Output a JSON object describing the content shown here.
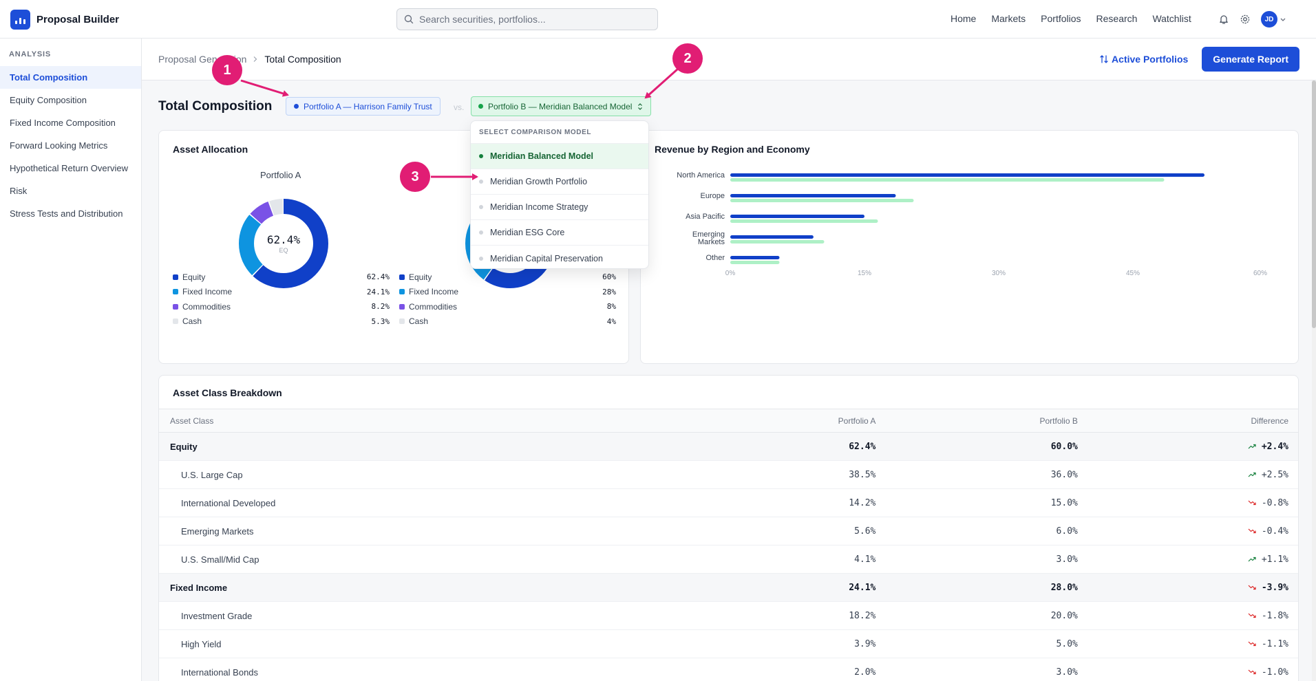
{
  "app": {
    "name": "Proposal Builder"
  },
  "search": {
    "placeholder": "Search securities, portfolios..."
  },
  "topnav": [
    "Home",
    "Markets",
    "Portfolios",
    "Research",
    "Watchlist"
  ],
  "user": {
    "initials": "JD"
  },
  "sidebar": {
    "section": "ANALYSIS",
    "items": [
      {
        "label": "Total Composition",
        "active": true
      },
      {
        "label": "Equity Composition"
      },
      {
        "label": "Fixed Income Composition"
      },
      {
        "label": "Forward Looking Metrics"
      },
      {
        "label": "Hypothetical Return Overview"
      },
      {
        "label": "Risk"
      },
      {
        "label": "Stress Tests and Distribution"
      }
    ]
  },
  "breadcrumb": {
    "parent": "Proposal Generation",
    "current": "Total Composition"
  },
  "actions": {
    "active_portfolios": "Active Portfolios",
    "generate": "Generate Report"
  },
  "page": {
    "title": "Total Composition",
    "portfolio_a": "Portfolio A — Harrison Family Trust",
    "vs": "vs.",
    "portfolio_b": "Portfolio B — Meridian Balanced Model"
  },
  "dropdown": {
    "header": "SELECT COMPARISON MODEL",
    "items": [
      {
        "label": "Meridian Balanced Model",
        "selected": true
      },
      {
        "label": "Meridian Growth Portfolio"
      },
      {
        "label": "Meridian Income Strategy"
      },
      {
        "label": "Meridian ESG Core"
      },
      {
        "label": "Meridian Capital Preservation"
      }
    ]
  },
  "allocation": {
    "title": "Asset Allocation",
    "portfolio_a_label": "Portfolio A",
    "center_value": "62.4%",
    "center_sub": "EQ",
    "colors": {
      "equity": "#1040c8",
      "fixed_income": "#0e94e0",
      "commodities": "#7a52e6",
      "cash": "#e3e6ea"
    },
    "a": [
      {
        "name": "Equity",
        "value": "62.4%",
        "pct": 62.4,
        "key": "equity"
      },
      {
        "name": "Fixed Income",
        "value": "24.1%",
        "pct": 24.1,
        "key": "fixed_income"
      },
      {
        "name": "Commodities",
        "value": "8.2%",
        "pct": 8.2,
        "key": "commodities"
      },
      {
        "name": "Cash",
        "value": "5.3%",
        "pct": 5.3,
        "key": "cash"
      }
    ],
    "b": [
      {
        "name": "Equity",
        "value": "60%",
        "pct": 60,
        "key": "equity"
      },
      {
        "name": "Fixed Income",
        "value": "28%",
        "pct": 28,
        "key": "fixed_income"
      },
      {
        "name": "Commodities",
        "value": "8%",
        "pct": 8,
        "key": "commodities"
      },
      {
        "name": "Cash",
        "value": "4%",
        "pct": 4,
        "key": "cash"
      }
    ]
  },
  "revenue": {
    "title": "Revenue by Region and Economy",
    "chart_data": {
      "type": "bar",
      "orientation": "horizontal",
      "categories": [
        "North America",
        "Europe",
        "Asia Pacific",
        "Emerging Markets",
        "Other"
      ],
      "series": [
        {
          "color": "#1040c8",
          "values": [
            53,
            18.5,
            15,
            9.3,
            5.5
          ]
        },
        {
          "color": "#aef0c6",
          "values": [
            48.5,
            20.5,
            16.5,
            10.5,
            5.5
          ]
        }
      ],
      "xticks": [
        "0%",
        "15%",
        "30%",
        "45%",
        "60%"
      ],
      "xlim": [
        0,
        60
      ],
      "grid": false
    }
  },
  "breakdown": {
    "title": "Asset Class Breakdown",
    "columns": [
      "Asset Class",
      "Portfolio A",
      "Portfolio B",
      "Difference"
    ],
    "rows": [
      {
        "group": true,
        "name": "Equity",
        "a": "62.4%",
        "b": "60.0%",
        "diff": "+2.4%",
        "dir": "up"
      },
      {
        "name": "U.S. Large Cap",
        "a": "38.5%",
        "b": "36.0%",
        "diff": "+2.5%",
        "dir": "up"
      },
      {
        "name": "International Developed",
        "a": "14.2%",
        "b": "15.0%",
        "diff": "-0.8%",
        "dir": "down"
      },
      {
        "name": "Emerging Markets",
        "a": "5.6%",
        "b": "6.0%",
        "diff": "-0.4%",
        "dir": "down"
      },
      {
        "name": "U.S. Small/Mid Cap",
        "a": "4.1%",
        "b": "3.0%",
        "diff": "+1.1%",
        "dir": "up"
      },
      {
        "group": true,
        "name": "Fixed Income",
        "a": "24.1%",
        "b": "28.0%",
        "diff": "-3.9%",
        "dir": "down"
      },
      {
        "name": "Investment Grade",
        "a": "18.2%",
        "b": "20.0%",
        "diff": "-1.8%",
        "dir": "down"
      },
      {
        "name": "High Yield",
        "a": "3.9%",
        "b": "5.0%",
        "diff": "-1.1%",
        "dir": "down"
      },
      {
        "name": "International Bonds",
        "a": "2.0%",
        "b": "3.0%",
        "diff": "-1.0%",
        "dir": "down"
      }
    ]
  },
  "annotations": [
    "1",
    "2",
    "3"
  ]
}
